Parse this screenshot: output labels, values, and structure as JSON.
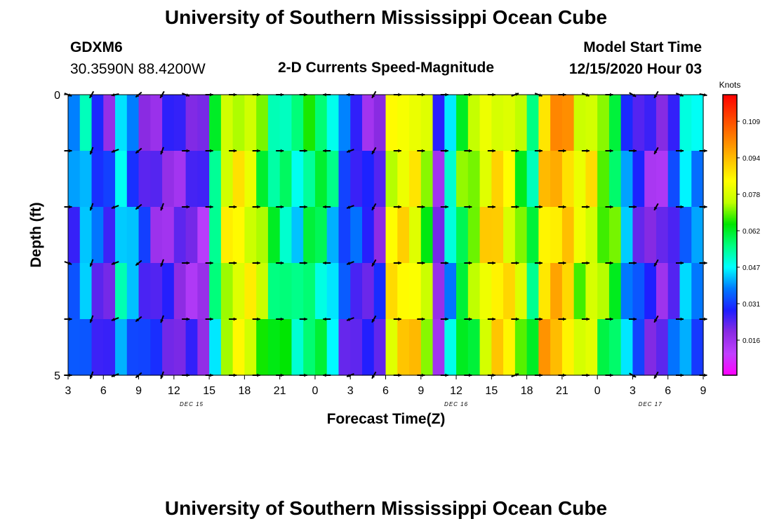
{
  "header": {
    "title": "University of Southern Mississippi Ocean Cube",
    "station": "GDXM6",
    "coords": "30.3590N 88.4200W",
    "subtitle": "2-D Currents Speed-Magnitude",
    "model_label": "Model Start Time",
    "model_time": "12/15/2020 Hour 03"
  },
  "footer": {
    "title": "University of Southern Mississippi Ocean Cube"
  },
  "chart_data": {
    "type": "heatmap",
    "title": "2-D Currents Speed-Magnitude",
    "xlabel": "Forecast Time(Z)",
    "ylabel": "Depth (ft)",
    "y_ticks": [
      "0",
      "5"
    ],
    "ylim": [
      0,
      5
    ],
    "x_tick_labels": [
      "3",
      "6",
      "9",
      "12",
      "15",
      "18",
      "21",
      "0",
      "3",
      "6",
      "9",
      "12",
      "15",
      "18",
      "21",
      "0",
      "3",
      "6",
      "9"
    ],
    "date_labels": [
      {
        "text": "DEC 15",
        "at_tick": 3.5
      },
      {
        "text": "DEC 16",
        "at_tick": 11
      },
      {
        "text": "DEC 17",
        "at_tick": 16.5
      }
    ],
    "x_hours": [
      3,
      57
    ],
    "colorbar": {
      "unit": "Knots",
      "min": 0.0,
      "max": 0.125,
      "tick_labels": [
        "0.109",
        "0.094",
        "0.078",
        "0.062",
        "0.047",
        "0.031",
        "0.016"
      ],
      "colors": [
        "#ff00ff",
        "#c040ff",
        "#8a2be2",
        "#1e1eff",
        "#0078ff",
        "#00ffff",
        "#00ff80",
        "#00e600",
        "#bfff00",
        "#ffff00",
        "#ffc000",
        "#ff7f00",
        "#ff4000",
        "#ff0000"
      ]
    },
    "depth_rows": 5,
    "column_speed_profile": [
      0.035,
      0.044,
      0.03,
      0.024,
      0.046,
      0.038,
      0.027,
      0.022,
      0.022,
      0.022,
      0.022,
      0.018,
      0.056,
      0.08,
      0.084,
      0.081,
      0.072,
      0.06,
      0.058,
      0.052,
      0.062,
      0.06,
      0.048,
      0.032,
      0.028,
      0.024,
      0.022,
      0.085,
      0.09,
      0.088,
      0.075,
      0.02,
      0.048,
      0.065,
      0.072,
      0.085,
      0.09,
      0.085,
      0.074,
      0.06,
      0.094,
      0.098,
      0.095,
      0.08,
      0.082,
      0.07,
      0.064,
      0.04,
      0.028,
      0.022,
      0.02,
      0.03,
      0.044,
      0.04
    ],
    "arrow_rows_depth": [
      0,
      1,
      2,
      3,
      4,
      5
    ],
    "arrow_hours_step": 3,
    "arrow_direction_deg": [
      [
        20,
        120,
        170,
        140,
        120,
        20,
        0,
        0,
        0,
        0,
        0,
        180,
        180,
        120,
        0,
        0,
        0,
        0,
        0,
        340,
        20,
        0,
        20,
        0,
        30,
        120,
        20,
        10,
        150
      ],
      [
        0,
        110,
        160,
        140,
        110,
        0,
        0,
        0,
        0,
        0,
        0,
        180,
        160,
        120,
        0,
        0,
        0,
        0,
        0,
        0,
        0,
        0,
        0,
        0,
        0,
        120,
        0,
        0,
        150
      ],
      [
        0,
        110,
        160,
        140,
        110,
        0,
        0,
        0,
        0,
        0,
        0,
        180,
        160,
        120,
        0,
        0,
        0,
        0,
        0,
        0,
        0,
        0,
        0,
        0,
        0,
        120,
        0,
        0,
        150
      ],
      [
        20,
        110,
        160,
        140,
        110,
        0,
        0,
        0,
        0,
        0,
        0,
        180,
        160,
        120,
        0,
        0,
        0,
        0,
        0,
        0,
        0,
        0,
        0,
        0,
        0,
        120,
        0,
        0,
        150
      ],
      [
        0,
        110,
        160,
        140,
        110,
        0,
        0,
        0,
        0,
        0,
        0,
        180,
        160,
        120,
        0,
        0,
        0,
        0,
        0,
        0,
        0,
        0,
        0,
        0,
        0,
        120,
        0,
        0,
        150
      ],
      [
        0,
        110,
        160,
        140,
        110,
        0,
        0,
        0,
        0,
        0,
        0,
        180,
        160,
        120,
        0,
        0,
        0,
        0,
        0,
        340,
        0,
        0,
        0,
        0,
        30,
        120,
        0,
        0,
        150
      ]
    ]
  }
}
